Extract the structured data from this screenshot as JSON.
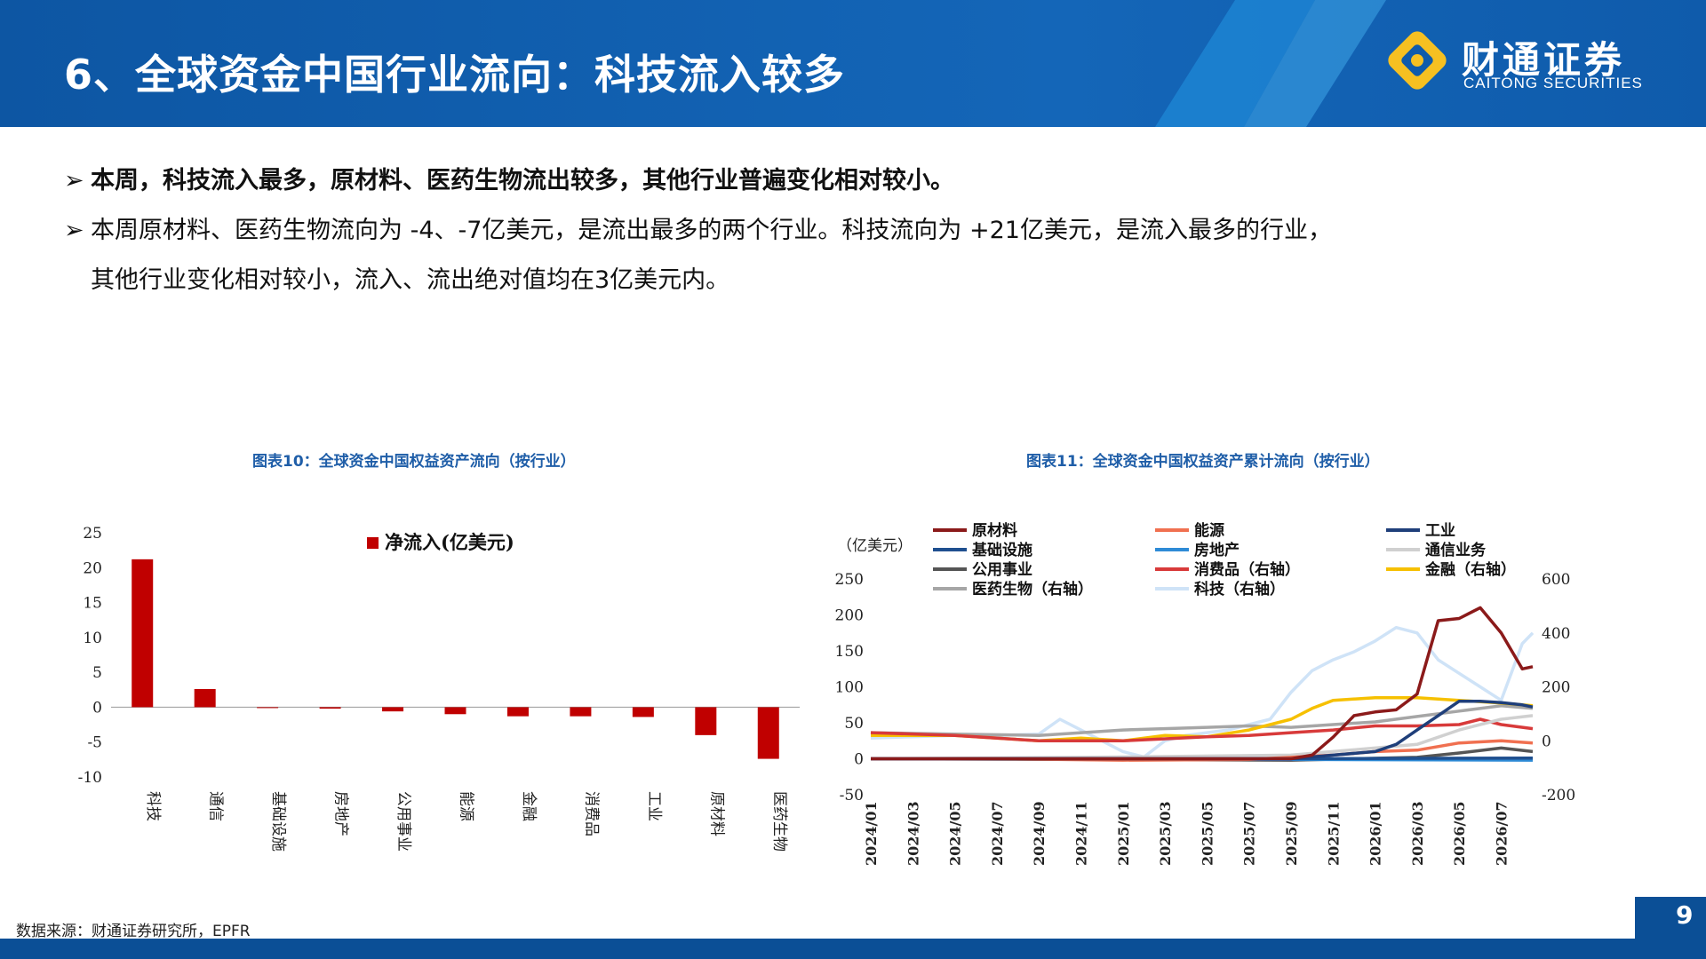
{
  "header": {
    "title": "6、全球资金中国行业流向：科技流入较多",
    "logo_cn": "财通证券",
    "logo_en": "CAITONG SECURITIES",
    "brand_color": "#0b5aa8",
    "logo_color": "#f6c021"
  },
  "bullets": {
    "b1": "本周，科技流入最多，原材料、医药生物流出较多，其他行业普遍变化相对较小。",
    "b2_line1": "本周原材料、医药生物流向为 -4、-7亿美元，是流出最多的两个行业。科技流向为 +21亿美元，是流入最多的行业，",
    "b2_line2": "其他行业变化相对较小，流入、流出绝对值均在3亿美元内。"
  },
  "figure10": {
    "title": "图表10：全球资金中国权益资产流向（按行业）"
  },
  "figure11": {
    "title": "图表11：全球资金中国权益资产累计流向（按行业）"
  },
  "footer": {
    "source": "数据来源：财通证券研究所，EPFR",
    "page": "9"
  },
  "chart_data": [
    {
      "type": "bar",
      "categories": [
        "科技",
        "通信",
        "基础设施",
        "房地产",
        "公用事业",
        "能源",
        "金融",
        "消费品",
        "工业",
        "原材料",
        "医药生物"
      ],
      "series": [
        {
          "name": "净流入(亿美元)",
          "values": [
            21.2,
            2.6,
            0.0,
            -0.2,
            -0.6,
            -1.0,
            -1.3,
            -1.3,
            -1.4,
            -4.0,
            -7.4
          ],
          "color": "#c00000"
        }
      ],
      "ylim": [
        -10,
        25
      ],
      "yticks": [
        25,
        20,
        15,
        10,
        5,
        0,
        -5,
        -10
      ],
      "legend_position": "top-right"
    },
    {
      "type": "line",
      "ylabel": "（亿美元）",
      "x_ticks": [
        "2024/01",
        "2024/03",
        "2024/05",
        "2024/07",
        "2024/09",
        "2024/11",
        "2025/01",
        "2025/03",
        "2025/05",
        "2025/07",
        "2025/09",
        "2025/11",
        "2026/01",
        "2026/03",
        "2026/05",
        "2026/07"
      ],
      "x_range": [
        0,
        31.5
      ],
      "ylim_left": [
        -50,
        250
      ],
      "yticks_left": [
        250,
        200,
        150,
        100,
        50,
        0,
        -50
      ],
      "ylim_right": [
        -200,
        600
      ],
      "yticks_right": [
        600,
        400,
        200,
        0,
        -200
      ],
      "legend_position": "top",
      "series": [
        {
          "name": "原材料",
          "axis": "left",
          "color": "#8b1a1a",
          "x": [
            0,
            4,
            8,
            12,
            16,
            18,
            20,
            21,
            22,
            23,
            24,
            25,
            26,
            27,
            28,
            29,
            30,
            31,
            31.5
          ],
          "values": [
            0,
            0,
            0,
            0,
            0,
            0,
            0,
            5,
            30,
            60,
            65,
            68,
            90,
            192,
            195,
            210,
            175,
            125,
            128
          ]
        },
        {
          "name": "能源",
          "axis": "left",
          "color": "#f07050",
          "x": [
            0,
            6,
            12,
            18,
            22,
            24,
            26,
            28,
            30,
            31.5
          ],
          "values": [
            0,
            0,
            -2,
            -1,
            5,
            10,
            12,
            22,
            25,
            22
          ]
        },
        {
          "name": "工业",
          "axis": "left",
          "color": "#1f3f7a",
          "x": [
            0,
            8,
            16,
            20,
            22,
            24,
            25,
            26,
            27,
            28,
            29,
            30,
            31,
            31.5
          ],
          "values": [
            0,
            0,
            0,
            0,
            5,
            10,
            20,
            40,
            60,
            80,
            80,
            78,
            75,
            72
          ]
        },
        {
          "name": "基础设施",
          "axis": "left",
          "color": "#1f4f8f",
          "x": [
            0,
            10,
            20,
            31.5
          ],
          "values": [
            0,
            0,
            0,
            1
          ]
        },
        {
          "name": "房地产",
          "axis": "left",
          "color": "#2e8bd6",
          "x": [
            0,
            10,
            20,
            31.5
          ],
          "values": [
            0,
            0,
            -1,
            -2
          ]
        },
        {
          "name": "通信业务",
          "axis": "left",
          "color": "#d0d0d0",
          "x": [
            0,
            10,
            20,
            26,
            28,
            30,
            31.5
          ],
          "values": [
            0,
            2,
            5,
            20,
            40,
            55,
            60
          ]
        },
        {
          "name": "公用事业",
          "axis": "left",
          "color": "#555555",
          "x": [
            0,
            10,
            20,
            26,
            28,
            30,
            31.5
          ],
          "values": [
            0,
            -1,
            -2,
            2,
            8,
            15,
            10
          ]
        },
        {
          "name": "消费品（右轴）",
          "axis": "right",
          "color": "#d83a3a",
          "x": [
            0,
            4,
            8,
            12,
            16,
            18,
            20,
            22,
            24,
            26,
            28,
            29,
            30,
            31.5
          ],
          "values": [
            30,
            20,
            0,
            0,
            15,
            20,
            30,
            40,
            55,
            55,
            60,
            80,
            60,
            45
          ]
        },
        {
          "name": "金融（右轴）",
          "axis": "right",
          "color": "#f6c000",
          "x": [
            0,
            4,
            6,
            8,
            10,
            12,
            14,
            16,
            18,
            20,
            21,
            22,
            24,
            26,
            28,
            30,
            31.5
          ],
          "values": [
            20,
            20,
            10,
            0,
            10,
            0,
            20,
            15,
            40,
            80,
            120,
            150,
            160,
            160,
            150,
            140,
            130
          ]
        },
        {
          "name": "医药生物（右轴）",
          "axis": "right",
          "color": "#a6a6a6",
          "x": [
            0,
            4,
            8,
            12,
            16,
            18,
            20,
            22,
            24,
            26,
            28,
            30,
            31.5
          ],
          "values": [
            30,
            25,
            20,
            40,
            50,
            55,
            50,
            60,
            70,
            90,
            110,
            130,
            120
          ]
        },
        {
          "name": "科技（右轴）",
          "axis": "right",
          "color": "#cfe3f7",
          "x": [
            0,
            2,
            4,
            6,
            8,
            9,
            10,
            11,
            12,
            13,
            14,
            15,
            16,
            17,
            18,
            19,
            20,
            21,
            22,
            23,
            24,
            25,
            26,
            27,
            28,
            29,
            30,
            31,
            31.5
          ],
          "values": [
            10,
            15,
            20,
            20,
            25,
            80,
            40,
            0,
            -40,
            -60,
            0,
            20,
            30,
            40,
            60,
            80,
            180,
            260,
            300,
            330,
            370,
            420,
            400,
            300,
            250,
            200,
            150,
            360,
            400
          ]
        }
      ]
    }
  ]
}
